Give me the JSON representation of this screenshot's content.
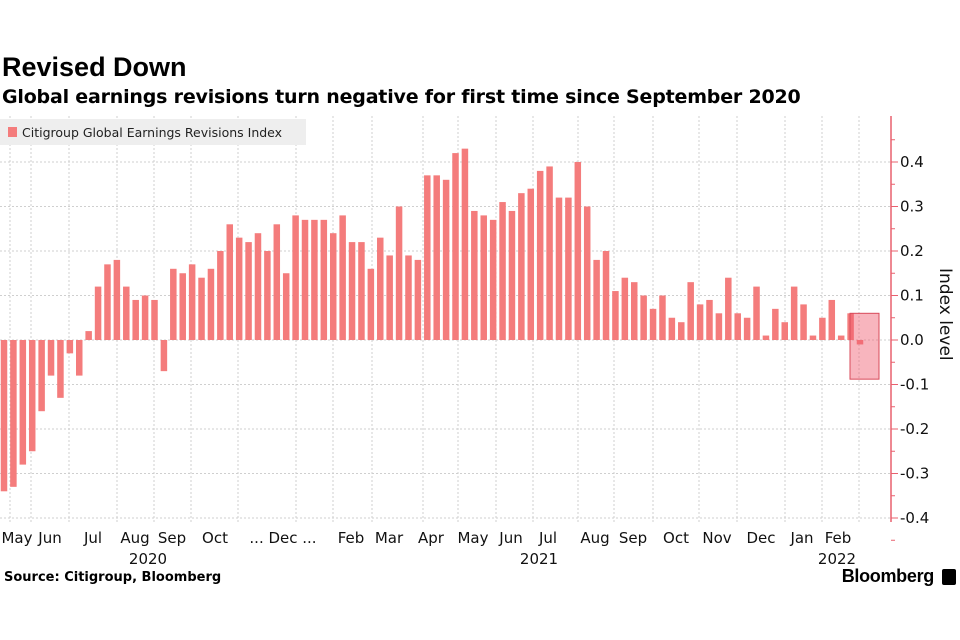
{
  "header": {
    "title": "Revised Down",
    "subtitle": "Global earnings revisions turn negative for first time since September 2020"
  },
  "footer": {
    "source": "Source: Citigroup, Bloomberg",
    "brand": "Bloomberg"
  },
  "chart_data": {
    "type": "bar",
    "series": [
      {
        "name": "Citigroup Global Earnings Revisions Index",
        "color": "#f47c7c",
        "values": [
          -0.34,
          -0.33,
          -0.28,
          -0.25,
          -0.16,
          -0.08,
          -0.13,
          -0.03,
          -0.08,
          0.02,
          0.12,
          0.17,
          0.18,
          0.12,
          0.09,
          0.1,
          0.09,
          -0.07,
          0.16,
          0.15,
          0.17,
          0.14,
          0.16,
          0.2,
          0.26,
          0.23,
          0.22,
          0.24,
          0.2,
          0.26,
          0.15,
          0.28,
          0.27,
          0.27,
          0.27,
          0.24,
          0.28,
          0.22,
          0.22,
          0.16,
          0.23,
          0.19,
          0.3,
          0.19,
          0.18,
          0.37,
          0.37,
          0.36,
          0.42,
          0.43,
          0.29,
          0.28,
          0.27,
          0.31,
          0.29,
          0.33,
          0.34,
          0.38,
          0.39,
          0.32,
          0.32,
          0.4,
          0.3,
          0.18,
          0.2,
          0.11,
          0.14,
          0.13,
          0.1,
          0.07,
          0.1,
          0.05,
          0.04,
          0.13,
          0.08,
          0.09,
          0.06,
          0.14,
          0.06,
          0.05,
          0.12,
          0.01,
          0.07,
          0.04,
          0.12,
          0.08,
          0.01,
          0.05,
          0.09,
          0.01,
          0.06,
          -0.01
        ]
      }
    ],
    "highlight": {
      "description_index_from": 90,
      "range": [
        -0.088,
        0.06
      ]
    },
    "x_tick_labels": [
      "May",
      "Jun",
      "Jul",
      "Aug",
      "Sep",
      "Oct",
      "... Dec ...",
      "Feb",
      "Mar",
      "Apr",
      "May",
      "Jun",
      "Jul",
      "Aug",
      "Sep",
      "Oct",
      "Nov",
      "Dec",
      "Jan",
      "Feb"
    ],
    "x_year_labels": [
      "2020",
      "2021",
      "2022"
    ],
    "y_ticks": [
      "0.4",
      "0.3",
      "0.2",
      "0.1",
      "0.0",
      "-0.1",
      "-0.2",
      "-0.3",
      "-0.4"
    ],
    "ylabel": "Index level",
    "ylim": [
      -0.4,
      0.4
    ],
    "y_axis_side": "right",
    "grid": true,
    "legend": "top-left"
  }
}
